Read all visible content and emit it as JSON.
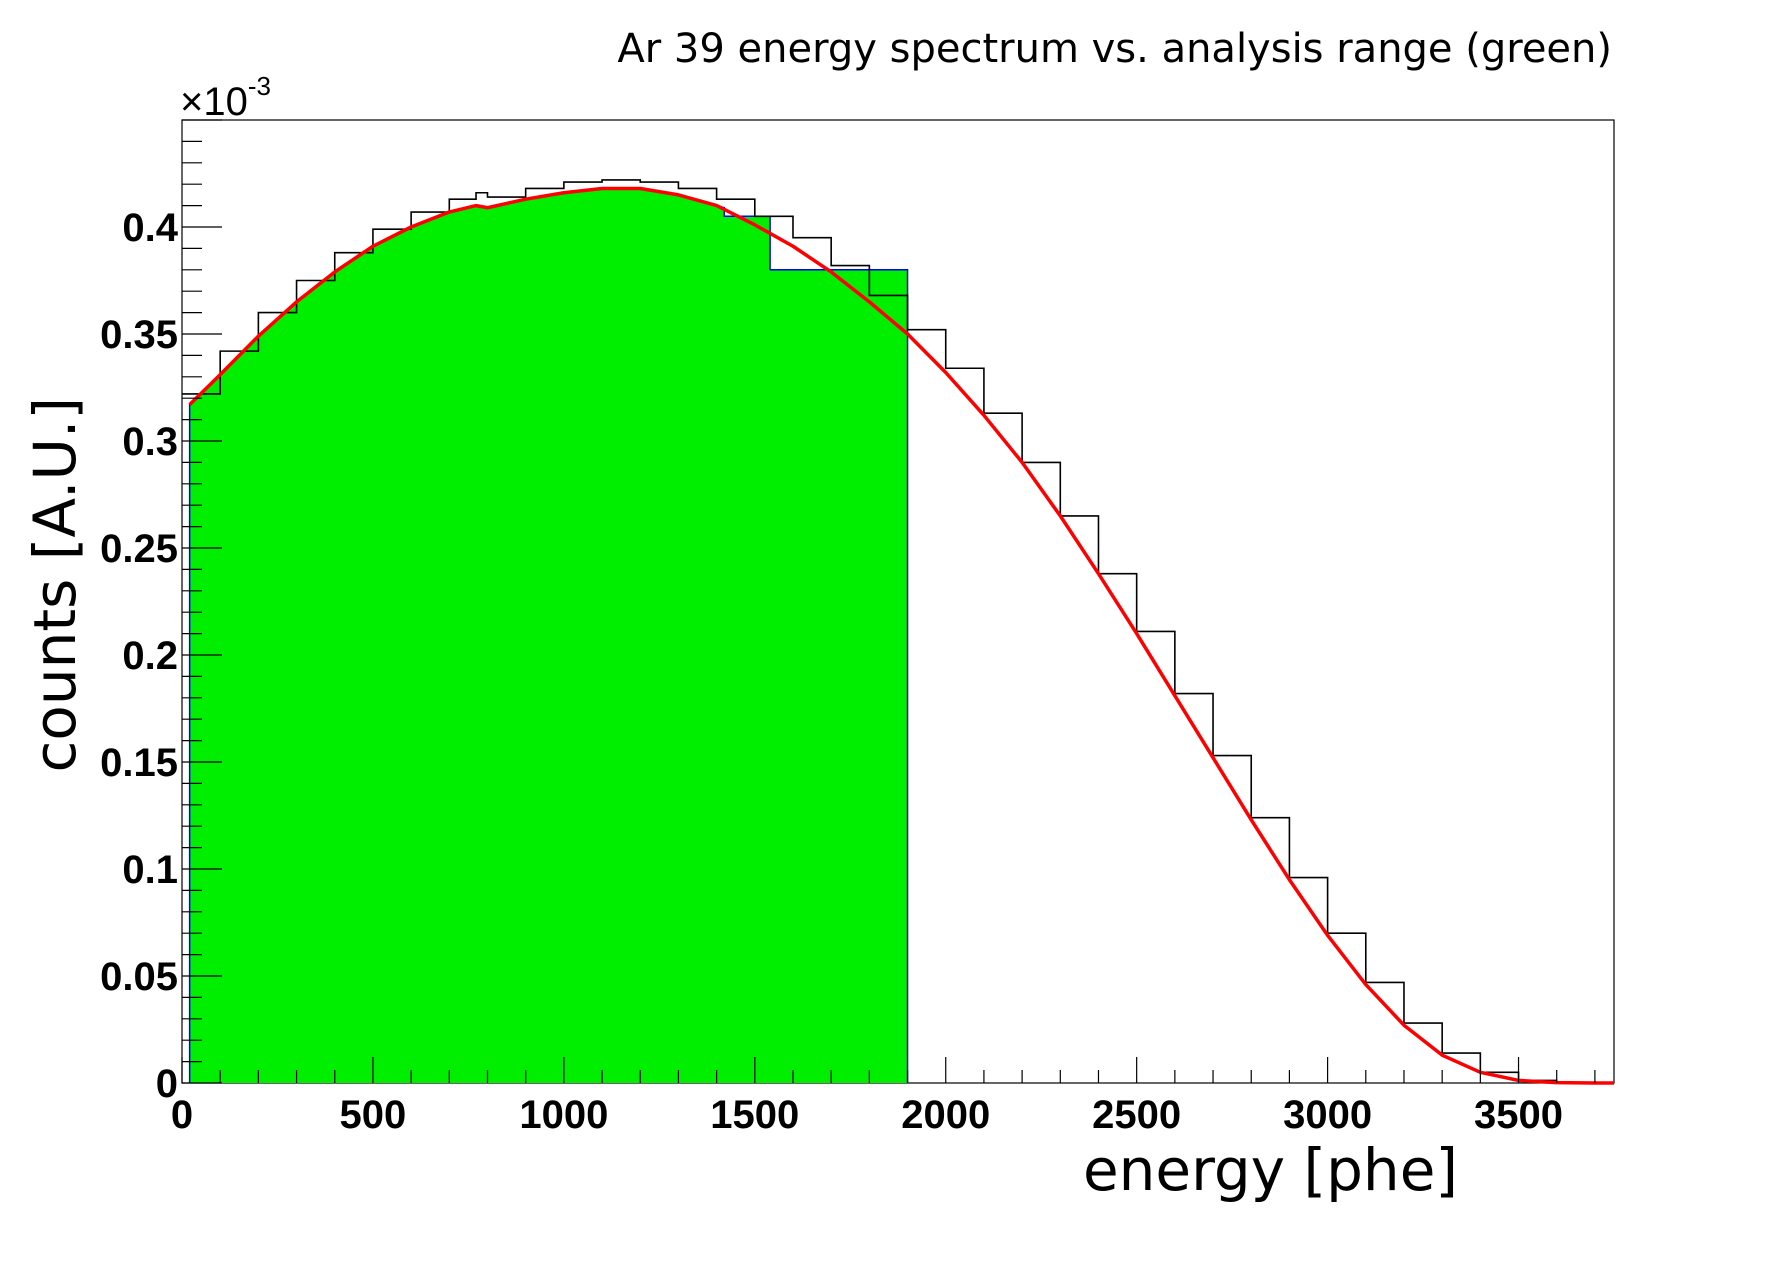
{
  "chart_data": {
    "type": "area",
    "title": "Ar 39 energy spectrum vs. analysis range (green)",
    "xlabel": "energy [phe]",
    "ylabel": "counts [A.U.]",
    "y_multiplier": "×10",
    "y_multiplier_exponent": "-3",
    "xlim": [
      0,
      3750
    ],
    "ylim": [
      0,
      0.00045
    ],
    "x_ticks": [
      0,
      500,
      1000,
      1500,
      2000,
      2500,
      3000,
      3500
    ],
    "x_tick_labels": [
      "0",
      "500",
      "1000",
      "1500",
      "2000",
      "2500",
      "3000",
      "3500"
    ],
    "y_ticks": [
      0,
      5e-05,
      0.0001,
      0.00015,
      0.0002,
      0.00025,
      0.0003,
      0.00035,
      0.0004
    ],
    "y_tick_labels": [
      "0",
      "0.05",
      "0.1",
      "0.15",
      "0.2",
      "0.25",
      "0.3",
      "0.35",
      "0.4"
    ],
    "series": [
      {
        "name": "spectrum histogram",
        "color": "#000000",
        "style": "step",
        "x": [
          0,
          100,
          200,
          300,
          400,
          500,
          600,
          700,
          770,
          800,
          900,
          1000,
          1100,
          1200,
          1300,
          1400,
          1500,
          1600,
          1700,
          1800,
          1900,
          2000,
          2100,
          2200,
          2300,
          2400,
          2500,
          2600,
          2700,
          2800,
          2900,
          3000,
          3100,
          3200,
          3300,
          3400,
          3500,
          3600,
          3700,
          3750
        ],
        "y": [
          0.000322,
          0.000342,
          0.00036,
          0.000375,
          0.000388,
          0.000399,
          0.000407,
          0.000413,
          0.000416,
          0.000414,
          0.000418,
          0.000421,
          0.000422,
          0.000421,
          0.000418,
          0.000413,
          0.000405,
          0.000395,
          0.000382,
          0.000368,
          0.000352,
          0.000334,
          0.000313,
          0.00029,
          0.000265,
          0.000238,
          0.000211,
          0.000182,
          0.000153,
          0.000124,
          9.6e-05,
          7e-05,
          4.7e-05,
          2.8e-05,
          1.4e-05,
          5e-06,
          1.2e-06,
          2e-07,
          0.0,
          0.0
        ]
      },
      {
        "name": "fit",
        "color": "#ff0000",
        "style": "line",
        "x": [
          20,
          100,
          200,
          300,
          400,
          500,
          600,
          700,
          770,
          800,
          900,
          1000,
          1100,
          1150,
          1200,
          1300,
          1400,
          1500,
          1600,
          1700,
          1800,
          1900,
          2000,
          2100,
          2200,
          2300,
          2400,
          2500,
          2600,
          2700,
          2800,
          2900,
          3000,
          3100,
          3200,
          3300,
          3400,
          3500,
          3600,
          3700,
          3750
        ],
        "y": [
          0.000317,
          0.000331,
          0.000349,
          0.000365,
          0.000379,
          0.000391,
          0.0004,
          0.000407,
          0.00041,
          0.000409,
          0.000413,
          0.000416,
          0.000418,
          0.000418,
          0.000418,
          0.000415,
          0.00041,
          0.000401,
          0.000391,
          0.000379,
          0.000365,
          0.00035,
          0.000332,
          0.000312,
          0.00029,
          0.000265,
          0.000238,
          0.00021,
          0.000181,
          0.000152,
          0.000123,
          9.5e-05,
          6.9e-05,
          4.6e-05,
          2.7e-05,
          1.3e-05,
          5e-06,
          1.2e-06,
          2e-07,
          0.0,
          0.0
        ]
      },
      {
        "name": "analysis range (green)",
        "color": "#00ee00",
        "edge_color": "#0000ff",
        "style": "filled-step",
        "x": [
          20,
          100,
          200,
          300,
          400,
          500,
          600,
          700,
          770,
          800,
          900,
          1000,
          1100,
          1150,
          1200,
          1300,
          1420,
          1420,
          1540,
          1540,
          1900
        ],
        "y": [
          0.000317,
          0.000331,
          0.000349,
          0.000365,
          0.000379,
          0.000391,
          0.0004,
          0.000407,
          0.00041,
          0.000409,
          0.000413,
          0.000416,
          0.000418,
          0.000418,
          0.000418,
          0.000415,
          0.000409,
          0.000405,
          0.000405,
          0.00038,
          0.00038
        ]
      }
    ]
  }
}
